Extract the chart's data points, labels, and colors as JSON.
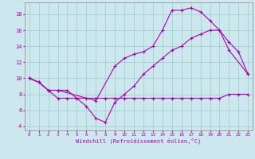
{
  "bg_color": "#cce8ee",
  "line_color": "#aa00aa",
  "grid_color": "#99cccc",
  "xlabel": "Windchill (Refroidissement éolien,°C)",
  "xlim": [
    -0.5,
    23.5
  ],
  "ylim": [
    3.5,
    19.5
  ],
  "yticks": [
    4,
    6,
    8,
    10,
    12,
    14,
    16,
    18
  ],
  "xticks": [
    0,
    1,
    2,
    3,
    4,
    5,
    6,
    7,
    8,
    9,
    10,
    11,
    12,
    13,
    14,
    15,
    16,
    17,
    18,
    19,
    20,
    21,
    22,
    23
  ],
  "line1_x": [
    0,
    1,
    2,
    3,
    7,
    9,
    10,
    11,
    12,
    13,
    14,
    15,
    16,
    17,
    18,
    19,
    20,
    21,
    23
  ],
  "line1_y": [
    10.0,
    9.5,
    8.5,
    8.5,
    7.2,
    11.5,
    12.5,
    13.0,
    13.3,
    14.0,
    16.0,
    18.5,
    18.5,
    18.8,
    18.3,
    17.2,
    16.0,
    13.5,
    10.5
  ],
  "line2_x": [
    0,
    1,
    2,
    3,
    4,
    5,
    6,
    7,
    8,
    9,
    10,
    11,
    12,
    13,
    14,
    15,
    16,
    17,
    18,
    19,
    20,
    21,
    22,
    23
  ],
  "line2_y": [
    10.0,
    9.5,
    8.5,
    8.5,
    8.5,
    7.5,
    6.5,
    5.0,
    4.5,
    7.0,
    8.0,
    9.0,
    10.5,
    11.5,
    12.5,
    13.5,
    14.0,
    15.0,
    15.5,
    16.0,
    16.0,
    14.5,
    13.3,
    10.5
  ],
  "line3_x": [
    0,
    1,
    2,
    3,
    4,
    5,
    6,
    7,
    8,
    9,
    10,
    11,
    12,
    13,
    14,
    15,
    16,
    17,
    18,
    19,
    20,
    21,
    22,
    23
  ],
  "line3_y": [
    10.0,
    9.5,
    8.5,
    7.5,
    7.5,
    7.5,
    7.5,
    7.5,
    7.5,
    7.5,
    7.5,
    7.5,
    7.5,
    7.5,
    7.5,
    7.5,
    7.5,
    7.5,
    7.5,
    7.5,
    7.5,
    8.0,
    8.0,
    8.0
  ]
}
